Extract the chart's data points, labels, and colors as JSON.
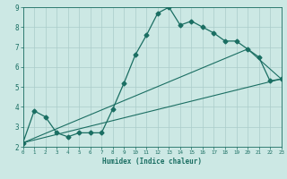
{
  "title": "",
  "xlabel": "Humidex (Indice chaleur)",
  "xlim": [
    0,
    23
  ],
  "ylim": [
    2,
    9
  ],
  "yticks": [
    2,
    3,
    4,
    5,
    6,
    7,
    8,
    9
  ],
  "xticks": [
    0,
    1,
    2,
    3,
    4,
    5,
    6,
    7,
    8,
    9,
    10,
    11,
    12,
    13,
    14,
    15,
    16,
    17,
    18,
    19,
    20,
    21,
    22,
    23
  ],
  "bg_color": "#cce8e4",
  "grid_color": "#aaccca",
  "line_color": "#1a6e62",
  "line1_x": [
    0,
    1,
    2,
    3,
    4,
    5,
    6,
    7,
    8,
    9,
    10,
    11,
    12,
    13,
    14,
    15,
    16,
    17,
    18,
    19,
    20,
    21,
    22,
    23
  ],
  "line1_y": [
    2.2,
    3.8,
    3.5,
    2.7,
    2.5,
    2.7,
    2.7,
    2.7,
    3.9,
    5.2,
    6.6,
    7.6,
    8.7,
    9.0,
    8.1,
    8.3,
    8.0,
    7.7,
    7.3,
    7.3,
    6.9,
    6.5,
    5.3,
    5.4
  ],
  "line2_x": [
    0,
    23
  ],
  "line2_y": [
    2.2,
    5.4
  ],
  "line3_x": [
    0,
    20,
    23
  ],
  "line3_y": [
    2.2,
    6.9,
    5.4
  ]
}
